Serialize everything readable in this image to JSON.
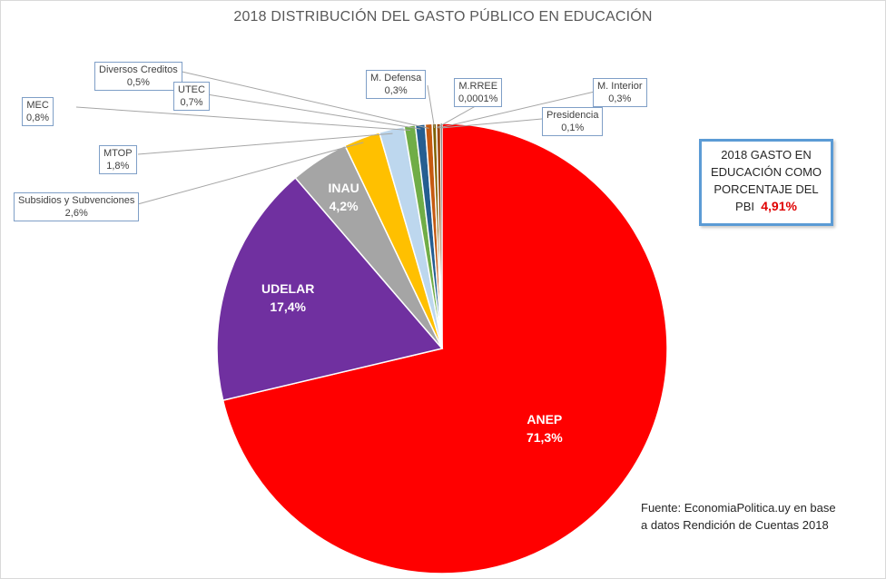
{
  "chart_data": {
    "type": "pie",
    "title": "2018 DISTRIBUCIÓN DEL GASTO PÚBLICO EN EDUCACIÓN",
    "slices": [
      {
        "name": "ANEP",
        "value": 71.3,
        "label": "71,3%",
        "color": "#ff0000"
      },
      {
        "name": "UDELAR",
        "value": 17.4,
        "label": "17,4%",
        "color": "#7030a0"
      },
      {
        "name": "INAU",
        "value": 4.2,
        "label": "4,2%",
        "color": "#a5a5a5"
      },
      {
        "name": "Subsidios y Subvenciones",
        "value": 2.6,
        "label": "2,6%",
        "color": "#ffc000"
      },
      {
        "name": "MTOP",
        "value": 1.8,
        "label": "1,8%",
        "color": "#bdd7ee"
      },
      {
        "name": "MEC",
        "value": 0.8,
        "label": "0,8%",
        "color": "#70ad47"
      },
      {
        "name": "UTEC",
        "value": 0.7,
        "label": "0,7%",
        "color": "#255e91"
      },
      {
        "name": "Diversos Creditos",
        "value": 0.5,
        "label": "0,5%",
        "color": "#c55a11"
      },
      {
        "name": "M. Defensa",
        "value": 0.3,
        "label": "0,3%",
        "color": "#7f6000"
      },
      {
        "name": "M.RREE",
        "value": 0.0001,
        "label": "0,0001%",
        "color": "#4472c4"
      },
      {
        "name": "M. Interior",
        "value": 0.3,
        "label": "0,3%",
        "color": "#9e480e"
      },
      {
        "name": "Presidencia",
        "value": 0.1,
        "label": "0,1%",
        "color": "#636363"
      }
    ]
  },
  "pbi_box": {
    "text": "2018 GASTO EN EDUCACIÓN COMO PORCENTAJE DEL PBI",
    "line1": "2018  GASTO EN",
    "line2": "EDUCACIÓN COMO",
    "line3": "PORCENTAJE DEL",
    "line4_prefix": "PBI",
    "value": "4,91%"
  },
  "source": {
    "line1": "Fuente: EconomiaPolitica.uy en base",
    "line2": "a datos Rendición de Cuentas 2018"
  }
}
